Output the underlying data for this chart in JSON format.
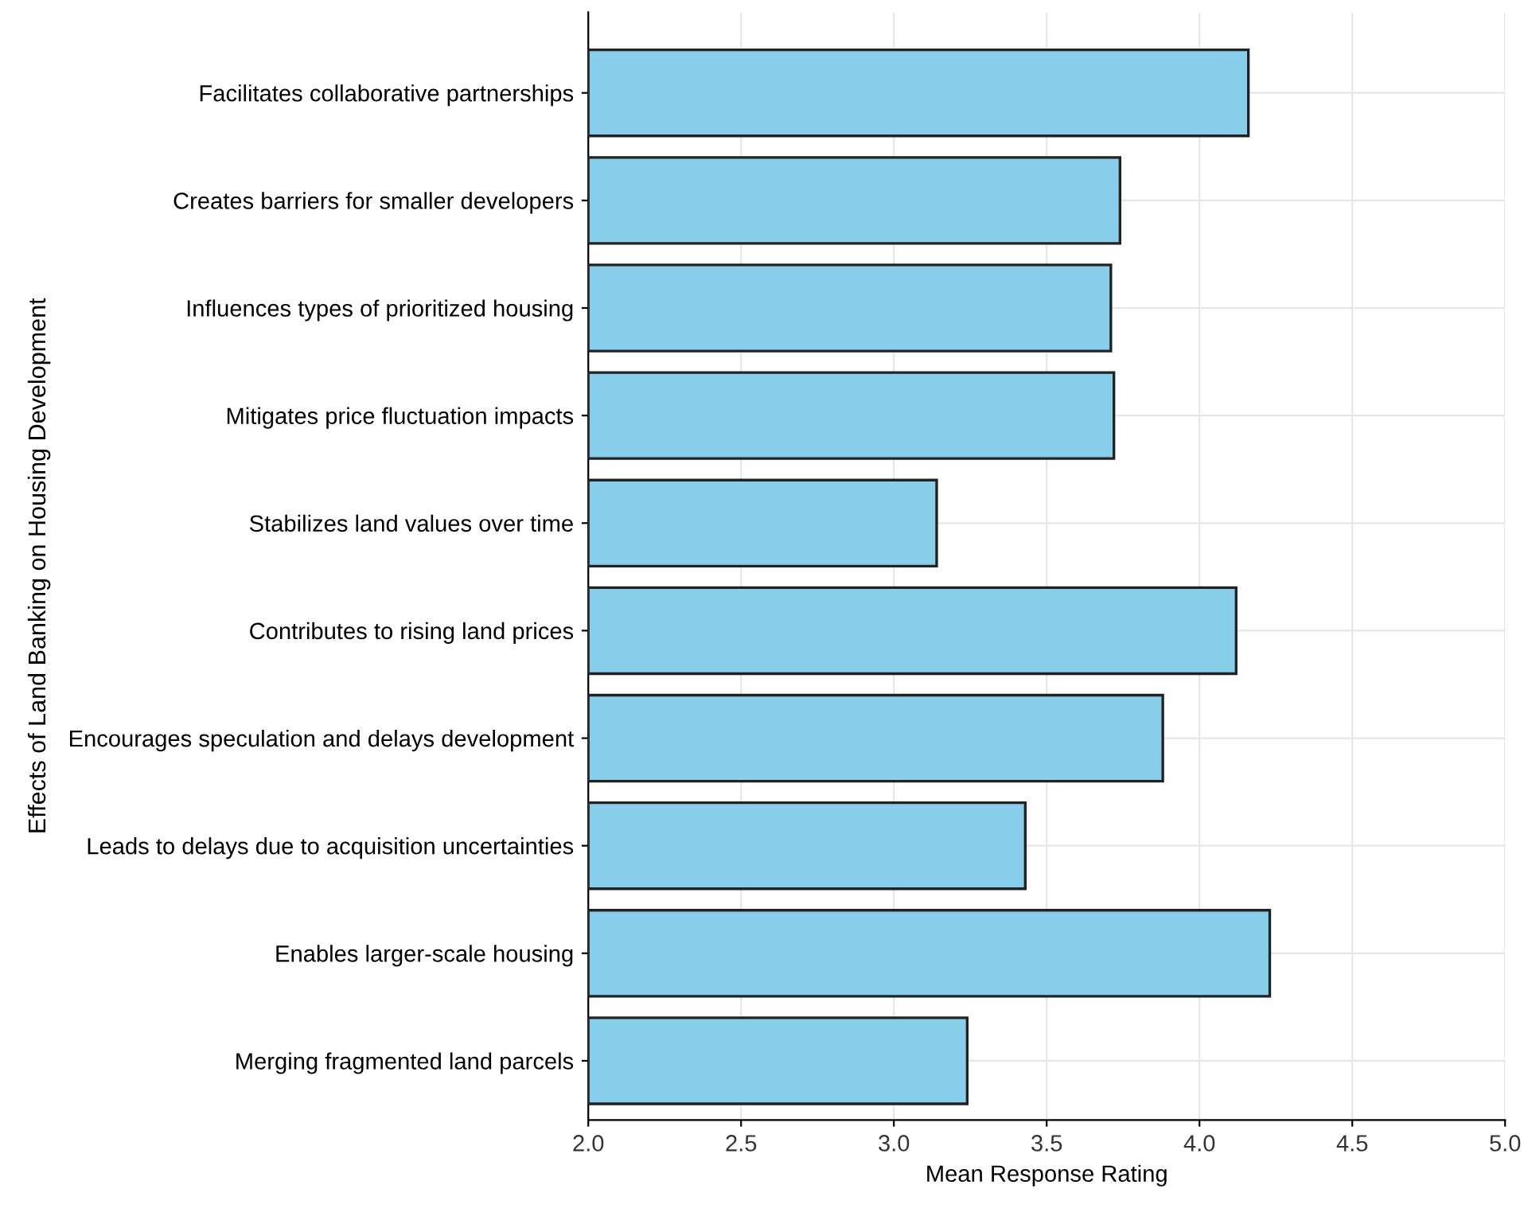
{
  "chart_data": {
    "type": "bar",
    "orientation": "horizontal",
    "xlabel": "Mean Response Rating",
    "ylabel": "Effects of Land Banking on Housing Development",
    "categories": [
      "Facilitates collaborative partnerships",
      "Creates barriers for smaller developers",
      "Influences types of prioritized housing",
      "Mitigates price fluctuation impacts",
      "Stabilizes land values over time",
      "Contributes to rising land prices",
      "Encourages speculation and delays development",
      "Leads to delays due to acquisition uncertainties",
      "Enables larger-scale housing",
      "Merging fragmented land parcels"
    ],
    "values": [
      4.16,
      3.74,
      3.71,
      3.72,
      3.14,
      4.12,
      3.88,
      3.43,
      4.23,
      3.24
    ],
    "color": "#87ceeb",
    "xlim": [
      2.0,
      5.0
    ],
    "xticks": [
      {
        "value": 2,
        "label": "2.0"
      },
      {
        "value": 2.5,
        "label": "2.5"
      },
      {
        "value": 3,
        "label": "3.0"
      },
      {
        "value": 3.5,
        "label": "3.5"
      },
      {
        "value": 4,
        "label": "4.0"
      },
      {
        "value": 4.5,
        "label": "4.5"
      },
      {
        "value": 5,
        "label": "5.0"
      }
    ],
    "grid": true
  }
}
